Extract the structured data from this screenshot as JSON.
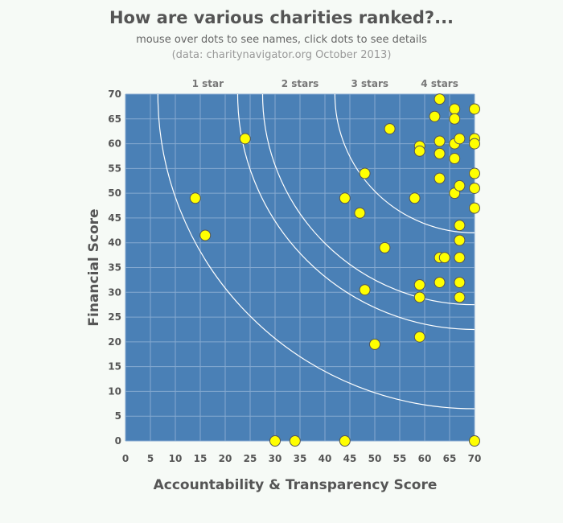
{
  "header": {
    "title": "How are various charities ranked?...",
    "subtitle": "mouse over dots to see names, click dots to see details",
    "source": "(data: charitynavigator.org October 2013)"
  },
  "colors": {
    "plot_bg": "#4a80b6",
    "grid": "#85a9d0",
    "curve": "#ffffff",
    "dot_fill": "#ffff00",
    "dot_stroke": "#555555"
  },
  "chart_data": {
    "type": "scatter",
    "xlabel": "Accountability & Transparency Score",
    "ylabel": "Financial Score",
    "xlim": [
      0,
      70
    ],
    "ylim": [
      0,
      70
    ],
    "xticks": [
      0,
      5,
      10,
      15,
      20,
      25,
      30,
      35,
      40,
      45,
      50,
      55,
      60,
      65,
      70
    ],
    "yticks": [
      0,
      5,
      10,
      15,
      20,
      25,
      30,
      35,
      40,
      45,
      50,
      55,
      60,
      65,
      70
    ],
    "grid": true,
    "star_labels": [
      {
        "label": "1 star",
        "x": 16.5
      },
      {
        "label": "2 stars",
        "x": 35
      },
      {
        "label": "3 stars",
        "x": 49
      },
      {
        "label": "4 stars",
        "x": 63
      }
    ],
    "rating_curves": [
      {
        "radius": 63.5
      },
      {
        "radius": 47.5
      },
      {
        "radius": 42.5
      },
      {
        "radius": 28
      }
    ],
    "points": [
      {
        "x": 14,
        "y": 49
      },
      {
        "x": 16,
        "y": 41.5
      },
      {
        "x": 24,
        "y": 61
      },
      {
        "x": 30,
        "y": 0
      },
      {
        "x": 34,
        "y": 0
      },
      {
        "x": 44,
        "y": 0
      },
      {
        "x": 44,
        "y": 49
      },
      {
        "x": 47,
        "y": 46
      },
      {
        "x": 48,
        "y": 54
      },
      {
        "x": 48,
        "y": 30.5
      },
      {
        "x": 50,
        "y": 19.5
      },
      {
        "x": 52,
        "y": 39
      },
      {
        "x": 53,
        "y": 63
      },
      {
        "x": 58,
        "y": 49
      },
      {
        "x": 59,
        "y": 59.5
      },
      {
        "x": 59,
        "y": 58.5
      },
      {
        "x": 59,
        "y": 31.5
      },
      {
        "x": 59,
        "y": 29
      },
      {
        "x": 59,
        "y": 21
      },
      {
        "x": 62,
        "y": 65.5
      },
      {
        "x": 63,
        "y": 69
      },
      {
        "x": 63,
        "y": 60.5
      },
      {
        "x": 63,
        "y": 58
      },
      {
        "x": 63,
        "y": 53
      },
      {
        "x": 63,
        "y": 37
      },
      {
        "x": 64,
        "y": 37
      },
      {
        "x": 63,
        "y": 32
      },
      {
        "x": 66,
        "y": 67
      },
      {
        "x": 66,
        "y": 65
      },
      {
        "x": 66,
        "y": 60
      },
      {
        "x": 66,
        "y": 57
      },
      {
        "x": 66,
        "y": 50
      },
      {
        "x": 67,
        "y": 61
      },
      {
        "x": 67,
        "y": 51.5
      },
      {
        "x": 67,
        "y": 43.5
      },
      {
        "x": 67,
        "y": 40.5
      },
      {
        "x": 67,
        "y": 37
      },
      {
        "x": 67,
        "y": 32
      },
      {
        "x": 67,
        "y": 29
      },
      {
        "x": 70,
        "y": 67
      },
      {
        "x": 70,
        "y": 61
      },
      {
        "x": 70,
        "y": 60
      },
      {
        "x": 70,
        "y": 54
      },
      {
        "x": 70,
        "y": 51
      },
      {
        "x": 70,
        "y": 47
      },
      {
        "x": 70,
        "y": 0
      }
    ]
  }
}
